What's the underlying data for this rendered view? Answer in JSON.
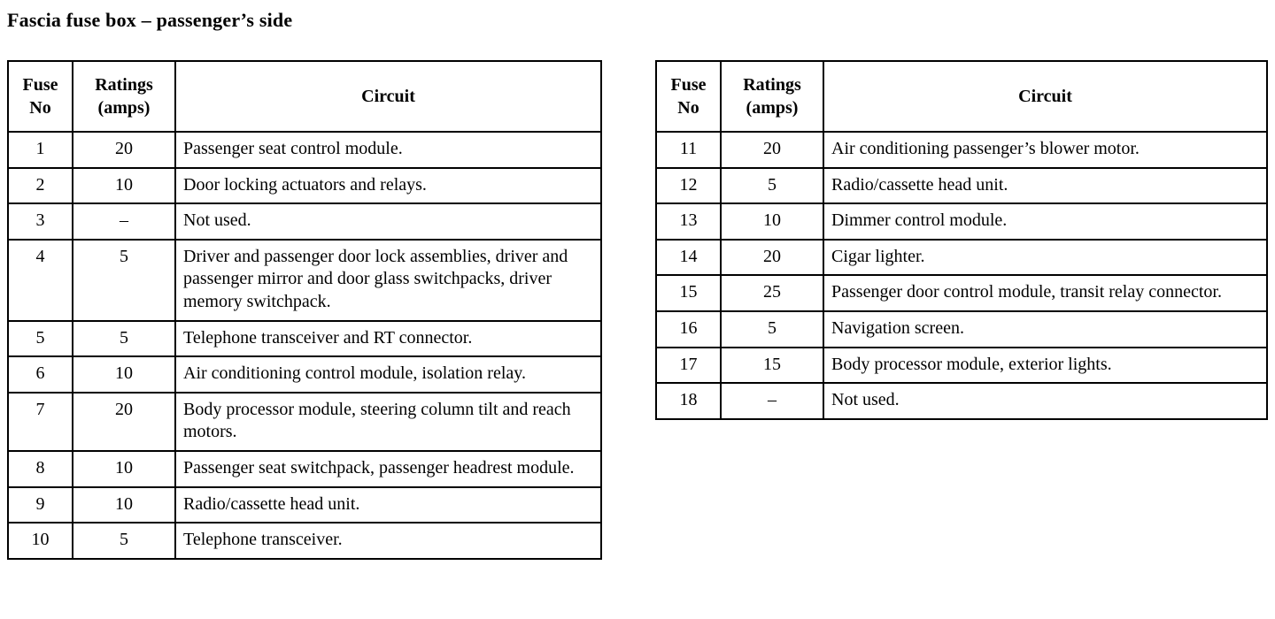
{
  "page": {
    "title": "Fascia fuse box – passenger’s side"
  },
  "tables": [
    {
      "headers": {
        "fuse_no": "Fuse\nNo",
        "ratings": "Ratings\n(amps)",
        "circuit": "Circuit"
      },
      "rows": [
        {
          "no": "1",
          "rating": "20",
          "circuit": "Passenger seat control module."
        },
        {
          "no": "2",
          "rating": "10",
          "circuit": "Door locking actuators and relays."
        },
        {
          "no": "3",
          "rating": "–",
          "circuit": "Not used."
        },
        {
          "no": "4",
          "rating": "5",
          "circuit": "Driver and passenger door lock assemblies, driver and passenger mirror and door glass switchpacks, driver memory switchpack."
        },
        {
          "no": "5",
          "rating": "5",
          "circuit": "Telephone transceiver and RT connector."
        },
        {
          "no": "6",
          "rating": "10",
          "circuit": "Air conditioning control module, isolation relay."
        },
        {
          "no": "7",
          "rating": "20",
          "circuit": "Body processor module, steering column tilt and reach motors."
        },
        {
          "no": "8",
          "rating": "10",
          "circuit": "Passenger seat switchpack, passenger headrest module."
        },
        {
          "no": "9",
          "rating": "10",
          "circuit": "Radio/cassette head unit."
        },
        {
          "no": "10",
          "rating": "5",
          "circuit": "Telephone transceiver."
        }
      ]
    },
    {
      "headers": {
        "fuse_no": "Fuse\nNo",
        "ratings": "Ratings\n(amps)",
        "circuit": "Circuit"
      },
      "rows": [
        {
          "no": "11",
          "rating": "20",
          "circuit": "Air conditioning passenger’s blower motor."
        },
        {
          "no": "12",
          "rating": "5",
          "circuit": "Radio/cassette head unit."
        },
        {
          "no": "13",
          "rating": "10",
          "circuit": "Dimmer control module."
        },
        {
          "no": "14",
          "rating": "20",
          "circuit": "Cigar lighter."
        },
        {
          "no": "15",
          "rating": "25",
          "circuit": "Passenger door control module, transit relay connector."
        },
        {
          "no": "16",
          "rating": "5",
          "circuit": "Navigation screen."
        },
        {
          "no": "17",
          "rating": "15",
          "circuit": "Body processor module, exterior lights."
        },
        {
          "no": "18",
          "rating": "–",
          "circuit": "Not used."
        }
      ]
    }
  ]
}
